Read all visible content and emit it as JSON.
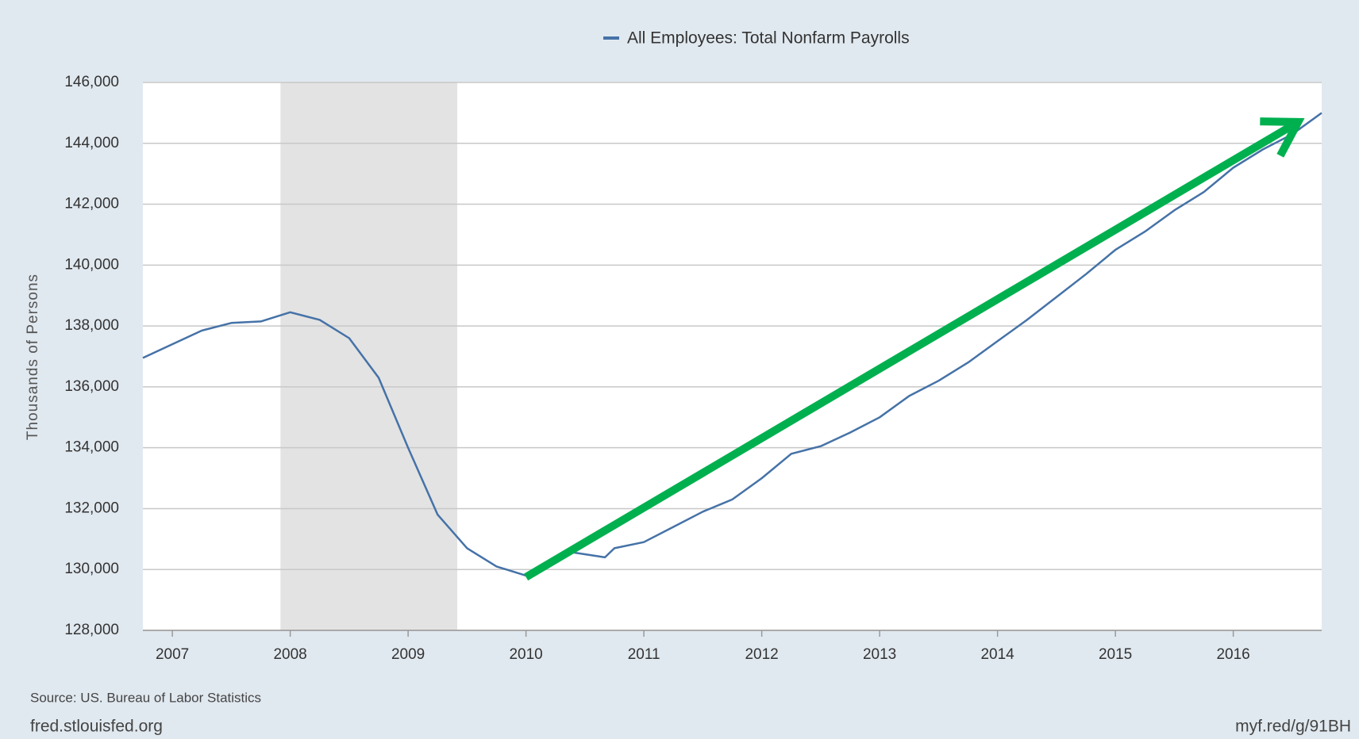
{
  "chart_data": {
    "type": "line",
    "legend": "All Employees: Total Nonfarm Payrolls",
    "ylabel": "Thousands of Persons",
    "source": "Source: US. Bureau of Labor Statistics",
    "footer_left": "fred.stlouisfed.org",
    "footer_right": "myf.red/g/91BH",
    "xlim": [
      2006.75,
      2016.75
    ],
    "xticks": [
      2007,
      2008,
      2009,
      2010,
      2011,
      2012,
      2013,
      2014,
      2015,
      2016
    ],
    "ylim": [
      128000,
      146000
    ],
    "yticks": [
      {
        "value": 128000,
        "label": "128,000"
      },
      {
        "value": 130000,
        "label": "130,000"
      },
      {
        "value": 132000,
        "label": "132,000"
      },
      {
        "value": 134000,
        "label": "134,000"
      },
      {
        "value": 136000,
        "label": "136,000"
      },
      {
        "value": 138000,
        "label": "138,000"
      },
      {
        "value": 140000,
        "label": "140,000"
      },
      {
        "value": 142000,
        "label": "142,000"
      },
      {
        "value": 144000,
        "label": "144,000"
      },
      {
        "value": 146000,
        "label": "146,000"
      }
    ],
    "grid": true,
    "recession": [
      2007.917,
      2009.417
    ],
    "recession_color": "#e3e3e3",
    "x": [
      2006.75,
      2007.0,
      2007.25,
      2007.5,
      2007.75,
      2008.0,
      2008.25,
      2008.5,
      2008.75,
      2009.0,
      2009.25,
      2009.5,
      2009.75,
      2010.0,
      2010.25,
      2010.33,
      2010.5,
      2010.67,
      2010.75,
      2011.0,
      2011.25,
      2011.5,
      2011.75,
      2012.0,
      2012.25,
      2012.5,
      2012.75,
      2013.0,
      2013.25,
      2013.5,
      2013.75,
      2014.0,
      2014.25,
      2014.5,
      2014.75,
      2015.0,
      2015.25,
      2015.5,
      2015.75,
      2016.0,
      2016.25,
      2016.5,
      2016.75
    ],
    "series": [
      {
        "name": "All Employees: Total Nonfarm Payrolls",
        "color": "#4572a7",
        "values": [
          136950,
          137400,
          137850,
          138100,
          138150,
          138450,
          138200,
          137600,
          136300,
          134000,
          131800,
          130700,
          130100,
          129800,
          130300,
          130600,
          130500,
          130400,
          130700,
          130900,
          131400,
          131900,
          132300,
          133000,
          133800,
          134050,
          134500,
          135000,
          135700,
          136200,
          136800,
          137500,
          138200,
          138950,
          139700,
          140500,
          141100,
          141800,
          142400,
          143200,
          143800,
          144300,
          145000
        ]
      }
    ],
    "arrow": {
      "x": [
        2010.0,
        2016.55
      ],
      "y": [
        129750,
        144700
      ],
      "color": "#00b04f"
    }
  }
}
